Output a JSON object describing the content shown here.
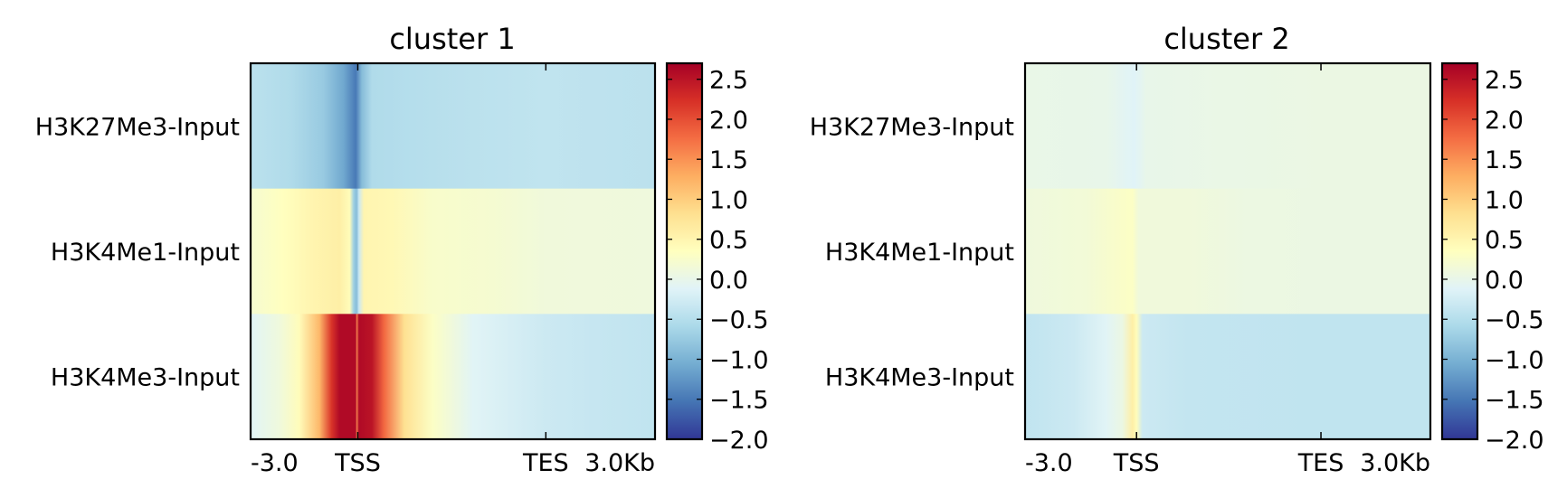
{
  "chart_data": [
    {
      "type": "heatmap",
      "title": "cluster 1",
      "rows": [
        "H3K27Me3-Input",
        "H3K4Me1-Input",
        "H3K4Me3-Input"
      ],
      "x_ticks": [
        "-3.0",
        "TSS",
        "TES",
        "3.0Kb"
      ],
      "x_tick_positions": [
        0,
        0.265,
        0.73,
        1.0
      ],
      "colorbar": {
        "colormap": "RdYlBu_r",
        "vmin": -2.0,
        "vmax": 2.7,
        "ticks": [
          "2.5",
          "2.0",
          "1.5",
          "1.0",
          "0.5",
          "0.0",
          "−0.5",
          "−1.0",
          "−1.5",
          "−2.0"
        ],
        "tick_values": [
          2.5,
          2.0,
          1.5,
          1.0,
          0.5,
          0.0,
          -0.5,
          -1.0,
          -1.5,
          -2.0
        ]
      },
      "profiles": [
        {
          "name": "H3K27Me3-Input",
          "points": [
            [
              0.0,
              -0.45
            ],
            [
              0.1,
              -0.55
            ],
            [
              0.18,
              -0.75
            ],
            [
              0.23,
              -1.1
            ],
            [
              0.26,
              -1.5
            ],
            [
              0.275,
              -0.9
            ],
            [
              0.3,
              -0.55
            ],
            [
              0.4,
              -0.5
            ],
            [
              0.55,
              -0.45
            ],
            [
              0.73,
              -0.4
            ],
            [
              0.85,
              -0.42
            ],
            [
              1.0,
              -0.45
            ]
          ]
        },
        {
          "name": "H3K4Me1-Input",
          "points": [
            [
              0.0,
              0.2
            ],
            [
              0.08,
              0.35
            ],
            [
              0.15,
              0.5
            ],
            [
              0.22,
              0.6
            ],
            [
              0.245,
              0.4
            ],
            [
              0.255,
              -0.7
            ],
            [
              0.262,
              -0.9
            ],
            [
              0.268,
              -0.3
            ],
            [
              0.28,
              0.5
            ],
            [
              0.35,
              0.45
            ],
            [
              0.45,
              0.25
            ],
            [
              0.6,
              0.2
            ],
            [
              0.73,
              0.12
            ],
            [
              1.0,
              0.1
            ]
          ]
        },
        {
          "name": "H3K4Me3-Input",
          "points": [
            [
              0.0,
              -0.1
            ],
            [
              0.07,
              0.1
            ],
            [
              0.12,
              0.4
            ],
            [
              0.17,
              1.2
            ],
            [
              0.2,
              2.2
            ],
            [
              0.22,
              2.6
            ],
            [
              0.26,
              2.6
            ],
            [
              0.262,
              1.6
            ],
            [
              0.268,
              2.6
            ],
            [
              0.3,
              2.5
            ],
            [
              0.33,
              1.8
            ],
            [
              0.38,
              0.8
            ],
            [
              0.45,
              0.3
            ],
            [
              0.55,
              -0.1
            ],
            [
              0.73,
              -0.3
            ],
            [
              0.85,
              -0.35
            ],
            [
              1.0,
              -0.4
            ]
          ]
        }
      ]
    },
    {
      "type": "heatmap",
      "title": "cluster 2",
      "rows": [
        "H3K27Me3-Input",
        "H3K4Me1-Input",
        "H3K4Me3-Input"
      ],
      "x_ticks": [
        "-3.0",
        "TSS",
        "TES",
        "3.0Kb"
      ],
      "x_tick_positions": [
        0,
        0.275,
        0.73,
        1.0
      ],
      "colorbar": {
        "colormap": "RdYlBu_r",
        "vmin": -2.0,
        "vmax": 2.7,
        "ticks": [
          "2.5",
          "2.0",
          "1.5",
          "1.0",
          "0.5",
          "0.0",
          "−0.5",
          "−1.0",
          "−1.5",
          "−2.0"
        ],
        "tick_values": [
          2.5,
          2.0,
          1.5,
          1.0,
          0.5,
          0.0,
          -0.5,
          -1.0,
          -1.5,
          -2.0
        ]
      },
      "profiles": [
        {
          "name": "H3K27Me3-Input",
          "points": [
            [
              0.0,
              0.02
            ],
            [
              0.2,
              0.0
            ],
            [
              0.27,
              -0.12
            ],
            [
              0.3,
              0.0
            ],
            [
              0.5,
              0.03
            ],
            [
              0.73,
              0.05
            ],
            [
              1.0,
              0.05
            ]
          ]
        },
        {
          "name": "H3K4Me1-Input",
          "points": [
            [
              0.0,
              0.1
            ],
            [
              0.15,
              0.15
            ],
            [
              0.22,
              0.25
            ],
            [
              0.265,
              0.3
            ],
            [
              0.28,
              0.12
            ],
            [
              0.4,
              0.12
            ],
            [
              0.55,
              0.06
            ],
            [
              0.73,
              0.05
            ],
            [
              1.0,
              0.05
            ]
          ]
        },
        {
          "name": "H3K4Me3-Input",
          "points": [
            [
              0.0,
              -0.4
            ],
            [
              0.12,
              -0.3
            ],
            [
              0.2,
              -0.1
            ],
            [
              0.24,
              0.05
            ],
            [
              0.265,
              0.6
            ],
            [
              0.275,
              0.4
            ],
            [
              0.29,
              -0.3
            ],
            [
              0.4,
              -0.38
            ],
            [
              0.73,
              -0.4
            ],
            [
              1.0,
              -0.4
            ]
          ]
        }
      ]
    }
  ]
}
